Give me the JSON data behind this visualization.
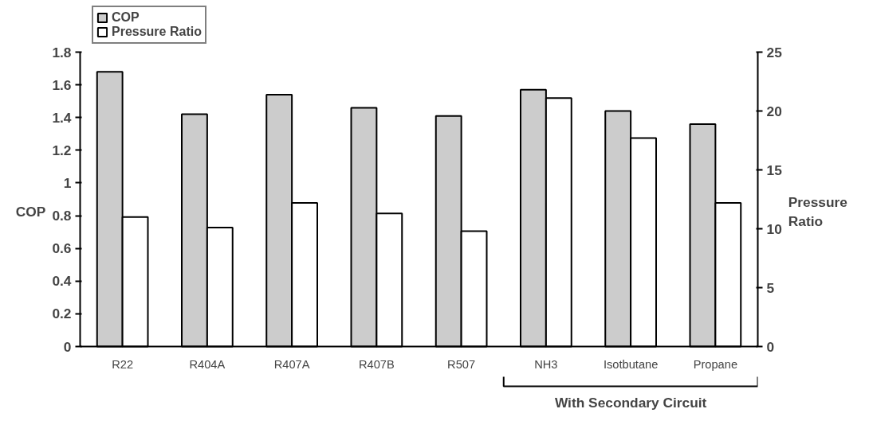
{
  "chart_data": {
    "type": "bar",
    "categories": [
      "R22",
      "R404A",
      "R407A",
      "R407B",
      "R507",
      "NH3",
      "Isotbutane",
      "Propane"
    ],
    "series": [
      {
        "name": "COP",
        "color": "#cccccc",
        "values": [
          1.68,
          1.42,
          1.54,
          1.46,
          1.41,
          1.57,
          1.44,
          1.36
        ]
      },
      {
        "name": "Pressure Ratio",
        "color": "#ffffff",
        "axis": "y2",
        "values": [
          11.0,
          10.1,
          12.2,
          11.3,
          9.8,
          21.1,
          17.7,
          12.2
        ]
      }
    ],
    "ylabel": "COP",
    "y2label": "Pressure Ratio",
    "ylim": [
      0,
      1.8
    ],
    "yticks": [
      0,
      0.2,
      0.4,
      0.6,
      0.8,
      1,
      1.2,
      1.4,
      1.6,
      1.8
    ],
    "y2lim": [
      0,
      25
    ],
    "y2ticks": [
      0,
      5,
      10,
      15,
      20,
      25
    ],
    "annotations": [
      "With Secondary Circuit"
    ],
    "legend": "top left",
    "grid": false
  }
}
